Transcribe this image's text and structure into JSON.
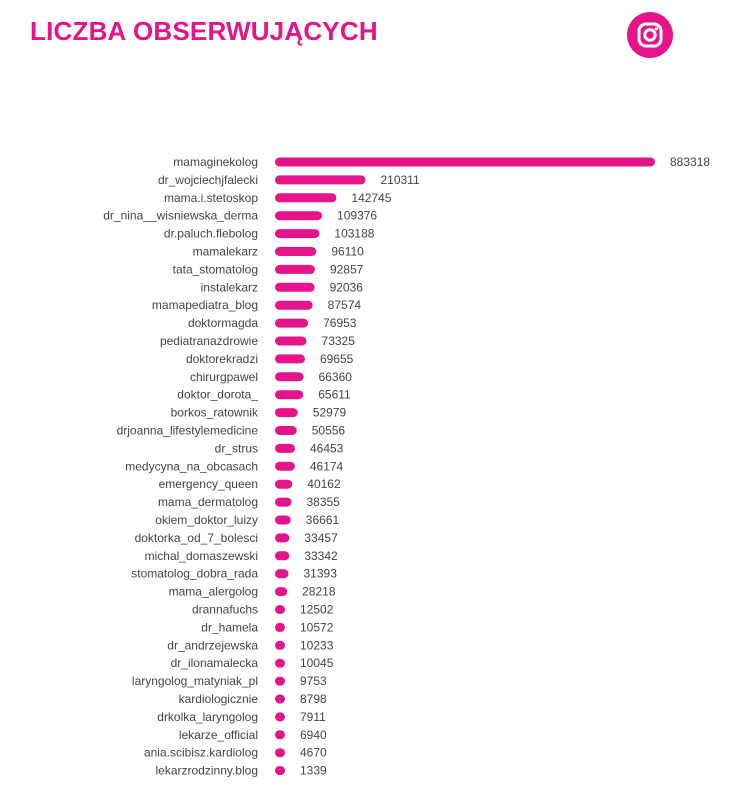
{
  "header": {
    "title": "LICZBA OBSERWUJĄCYCH",
    "icon": "instagram-icon"
  },
  "colors": {
    "accent": "#e5148a",
    "text": "#444444"
  },
  "chart_data": {
    "type": "bar",
    "orientation": "horizontal",
    "title": "LICZBA OBSERWUJĄCYCH",
    "xlabel": "",
    "ylabel": "",
    "grid": false,
    "categories": [
      "mamaginekolog",
      "dr_wojciechjfalecki",
      "mama.i.stetoskop",
      "dr_nina__wisniewska_derma",
      "dr.paluch.flebolog",
      "mamalekarz",
      "tata_stomatolog",
      "instalekarz",
      "mamapediatra_blog",
      "doktormagda",
      "pediatranazdrowie",
      "doktorekradzi",
      "chirurgpawel",
      "doktor_dorota_",
      "borkos_ratownik",
      "drjoanna_lifestylemedicine",
      "dr_strus",
      "medycyna_na_obcasach",
      "emergency_queen",
      "mama_dermatolog",
      "okiem_doktor_luizy",
      "doktorka_od_7_bolesci",
      "michal_domaszewski",
      "stomatolog_dobra_rada",
      "mama_alergolog",
      "drannafuchs",
      "dr_hamela",
      "dr_andrzejewska",
      "dr_ilonamalecka",
      "laryngolog_matyniak_pl",
      "kardiologicznie",
      "drkolka_laryngolog",
      "lekarze_official",
      "ania.scibisz.kardiolog",
      "lekarzrodzinny.blog"
    ],
    "values": [
      883318,
      210311,
      142745,
      109376,
      103188,
      96110,
      92857,
      92036,
      87574,
      76953,
      73325,
      69655,
      66360,
      65611,
      52979,
      50556,
      46453,
      46174,
      40162,
      38355,
      36661,
      33457,
      33342,
      31393,
      28218,
      12502,
      10572,
      10233,
      10045,
      9753,
      8798,
      7911,
      6940,
      4670,
      1339
    ],
    "value_labels": [
      "883318",
      "210311",
      "142745",
      "109376",
      "103188",
      "96110",
      "92857",
      "92036",
      "87574",
      "76953",
      "73325",
      "69655",
      "66360",
      "65611",
      "52979",
      "50556",
      "46453",
      "46174",
      "40162",
      "38355",
      "36661",
      "33457",
      "33342",
      "31393",
      "28218",
      "12502",
      "10572",
      "10233",
      "10045",
      "9753",
      "8798",
      "7911",
      "6940",
      "4670",
      "1339"
    ],
    "xlim": [
      0,
      883318
    ]
  }
}
